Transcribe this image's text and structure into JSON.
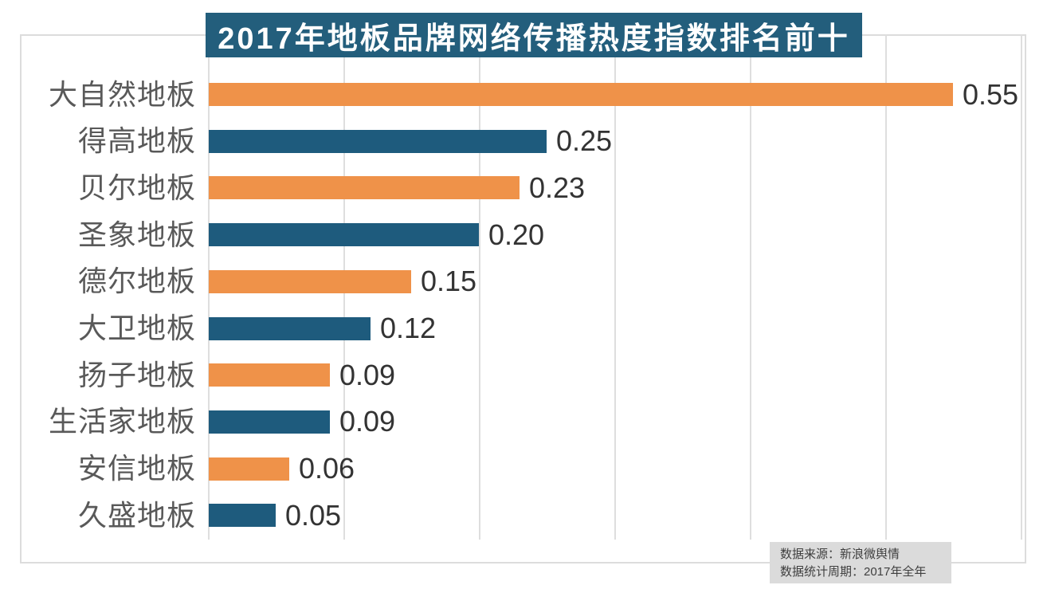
{
  "chart_data": {
    "type": "bar",
    "orientation": "horizontal",
    "title": "2017年地板品牌网络传播热度指数排名前十",
    "categories": [
      "大自然地板",
      "得高地板",
      "贝尔地板",
      "圣象地板",
      "德尔地板",
      "大卫地板",
      "扬子地板",
      "生活家地板",
      "安信地板",
      "久盛地板"
    ],
    "values": [
      0.55,
      0.25,
      0.23,
      0.2,
      0.15,
      0.12,
      0.09,
      0.09,
      0.06,
      0.05
    ],
    "value_labels": [
      "0.55",
      "0.25",
      "0.23",
      "0.20",
      "0.15",
      "0.12",
      "0.09",
      "0.09",
      "0.06",
      "0.05"
    ],
    "bar_colors": [
      "orange",
      "blue",
      "orange",
      "blue",
      "orange",
      "blue",
      "orange",
      "blue",
      "orange",
      "blue"
    ],
    "xlabel": "",
    "ylabel": "",
    "xlim": [
      0,
      0.6
    ],
    "gridline_interval": 0.1,
    "grid": true,
    "legend": false,
    "value_labels_position": "end-of-bar"
  },
  "palette": {
    "orange": "#EF9249",
    "blue": "#1E5B7D",
    "banner_bg": "#235E7C",
    "banner_text": "#FFFFFF",
    "gridline": "#DEDEDE",
    "frame_border": "#DCDCDC",
    "category_text": "#595959",
    "value_text": "#333333",
    "source_box_bg": "#DBDBDB",
    "source_text": "#3F3F3F"
  },
  "source": {
    "line1": "数据来源：新浪微舆情",
    "line2": "数据统计周期：2017年全年"
  }
}
